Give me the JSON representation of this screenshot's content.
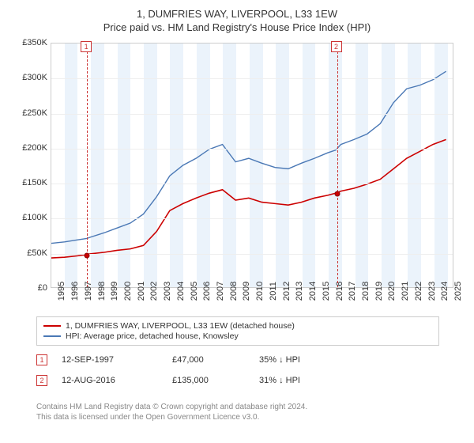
{
  "title_line1": "1, DUMFRIES WAY, LIVERPOOL, L33 1EW",
  "title_line2": "Price paid vs. HM Land Registry's House Price Index (HPI)",
  "chart": {
    "type": "line",
    "x_years": [
      1995,
      1996,
      1997,
      1998,
      1999,
      2000,
      2001,
      2002,
      2003,
      2004,
      2005,
      2006,
      2007,
      2008,
      2009,
      2010,
      2011,
      2012,
      2013,
      2014,
      2015,
      2016,
      2017,
      2018,
      2019,
      2020,
      2021,
      2022,
      2023,
      2024,
      2025
    ],
    "x_range": [
      1995,
      2025.5
    ],
    "ylim": [
      0,
      350000
    ],
    "ytick_step": 50000,
    "ytick_labels": [
      "£0",
      "£50K",
      "£100K",
      "£150K",
      "£200K",
      "£250K",
      "£300K",
      "£350K"
    ],
    "grid_color": "#eeeeee",
    "border_color": "#cccccc",
    "background_color": "#ffffff",
    "shade_color": "#dbeaf7",
    "shade_opacity": 0.55,
    "series": [
      {
        "name": "property_price",
        "label": "1, DUMFRIES WAY, LIVERPOOL, L33 1EW (detached house)",
        "color": "#cc0000",
        "line_width": 1.6,
        "points": [
          [
            1995,
            42000
          ],
          [
            1996,
            43000
          ],
          [
            1997,
            45000
          ],
          [
            1997.7,
            47000
          ],
          [
            1998,
            48000
          ],
          [
            1999,
            50000
          ],
          [
            2000,
            53000
          ],
          [
            2001,
            55000
          ],
          [
            2002,
            60000
          ],
          [
            2003,
            80000
          ],
          [
            2004,
            110000
          ],
          [
            2005,
            120000
          ],
          [
            2006,
            128000
          ],
          [
            2007,
            135000
          ],
          [
            2008,
            140000
          ],
          [
            2009,
            125000
          ],
          [
            2010,
            128000
          ],
          [
            2011,
            122000
          ],
          [
            2012,
            120000
          ],
          [
            2013,
            118000
          ],
          [
            2014,
            122000
          ],
          [
            2015,
            128000
          ],
          [
            2016,
            132000
          ],
          [
            2016.62,
            135000
          ],
          [
            2017,
            138000
          ],
          [
            2018,
            142000
          ],
          [
            2019,
            148000
          ],
          [
            2020,
            155000
          ],
          [
            2021,
            170000
          ],
          [
            2022,
            185000
          ],
          [
            2023,
            195000
          ],
          [
            2024,
            205000
          ],
          [
            2025,
            212000
          ]
        ]
      },
      {
        "name": "hpi",
        "label": "HPI: Average price, detached house, Knowsley",
        "color": "#4a78b5",
        "line_width": 1.4,
        "points": [
          [
            1995,
            63000
          ],
          [
            1996,
            65000
          ],
          [
            1997,
            68000
          ],
          [
            1997.7,
            70000
          ],
          [
            1998,
            72000
          ],
          [
            1999,
            78000
          ],
          [
            2000,
            85000
          ],
          [
            2001,
            92000
          ],
          [
            2002,
            105000
          ],
          [
            2003,
            130000
          ],
          [
            2004,
            160000
          ],
          [
            2005,
            175000
          ],
          [
            2006,
            185000
          ],
          [
            2007,
            198000
          ],
          [
            2008,
            205000
          ],
          [
            2009,
            180000
          ],
          [
            2010,
            185000
          ],
          [
            2011,
            178000
          ],
          [
            2012,
            172000
          ],
          [
            2013,
            170000
          ],
          [
            2014,
            178000
          ],
          [
            2015,
            185000
          ],
          [
            2016,
            193000
          ],
          [
            2016.62,
            197000
          ],
          [
            2017,
            205000
          ],
          [
            2018,
            212000
          ],
          [
            2019,
            220000
          ],
          [
            2020,
            235000
          ],
          [
            2021,
            265000
          ],
          [
            2022,
            285000
          ],
          [
            2023,
            290000
          ],
          [
            2024,
            298000
          ],
          [
            2025,
            310000
          ]
        ]
      }
    ],
    "sales": [
      {
        "n": "1",
        "date": "12-SEP-1997",
        "x": 1997.7,
        "price_v": 47000,
        "price": "£47,000",
        "delta": "35% ↓ HPI"
      },
      {
        "n": "2",
        "date": "12-AUG-2016",
        "x": 2016.62,
        "price_v": 135000,
        "price": "£135,000",
        "delta": "31% ↓ HPI"
      }
    ]
  },
  "footer_line1": "Contains HM Land Registry data © Crown copyright and database right 2024.",
  "footer_line2": "This data is licensed under the Open Government Licence v3.0."
}
